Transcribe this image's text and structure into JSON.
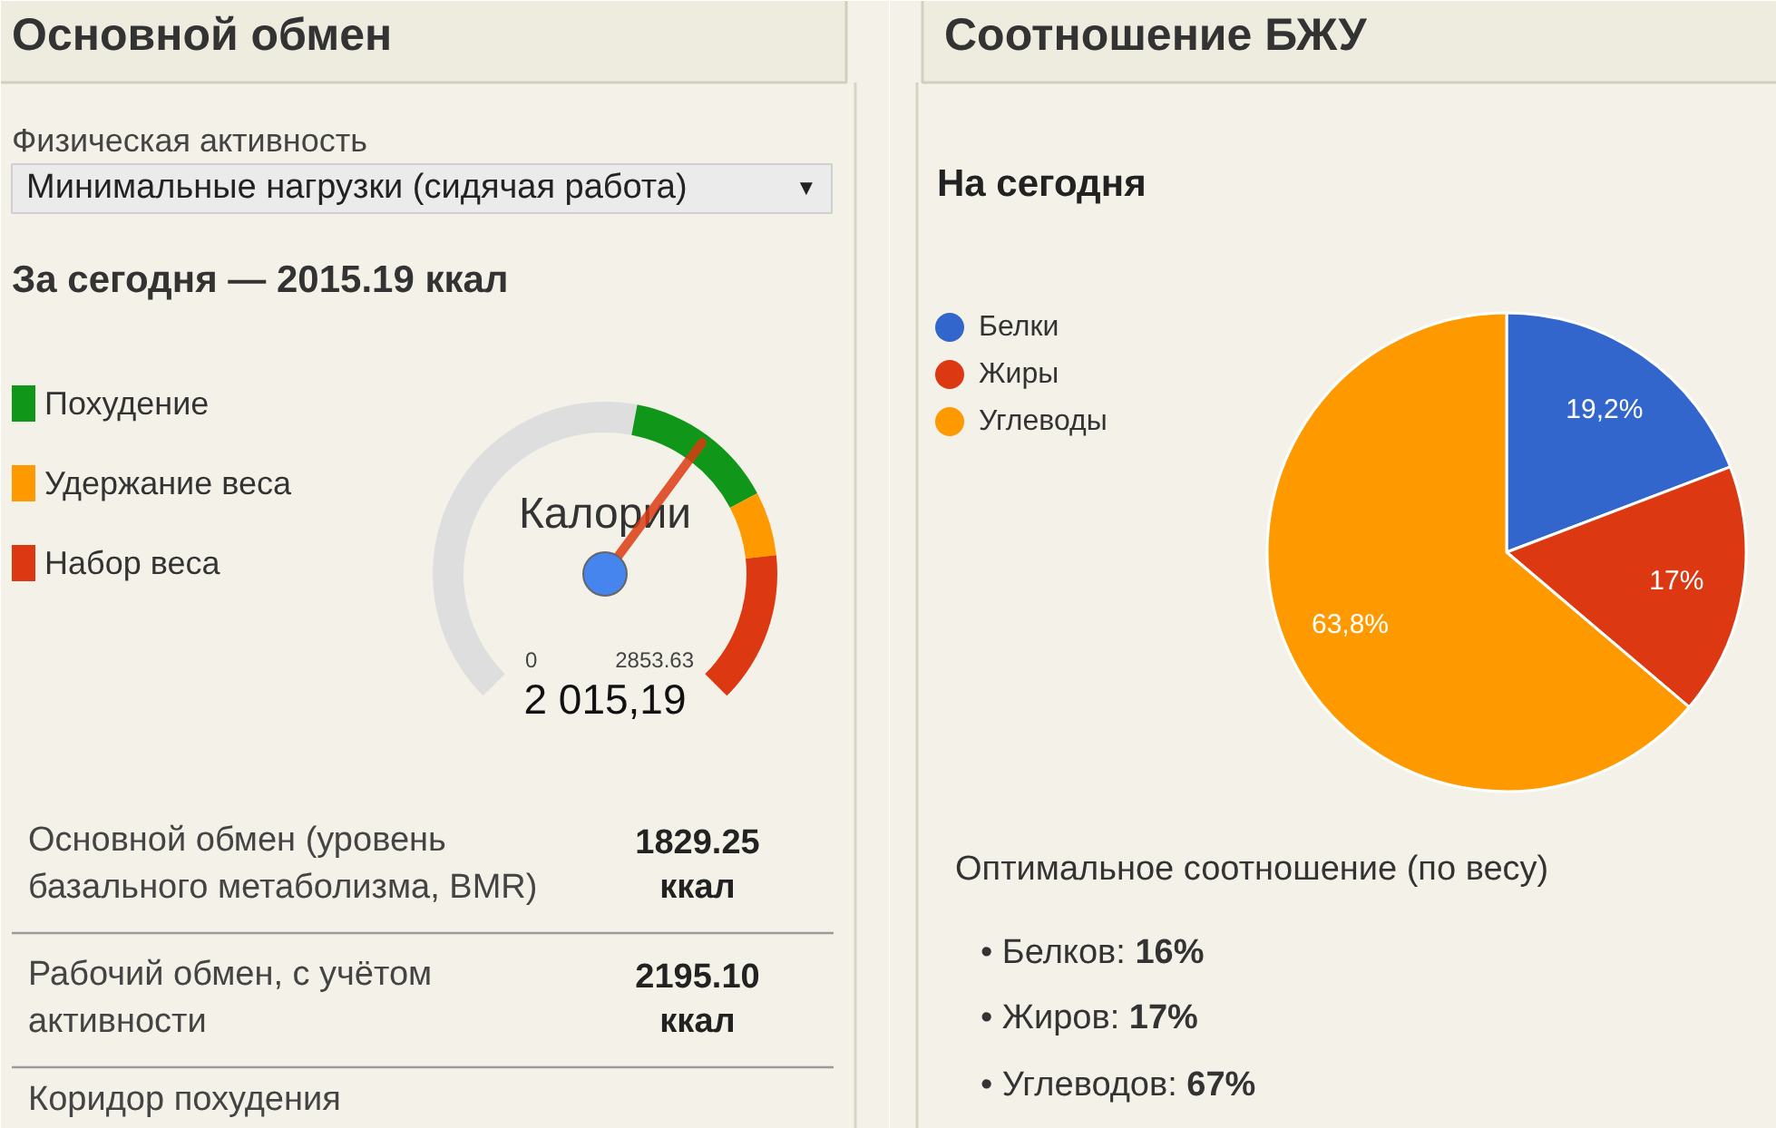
{
  "chart_data": [
    {
      "type": "donut",
      "title": "Основной обмен",
      "categories": [
        null,
        "Похудение",
        "Удержание веса",
        "Набор веса"
      ],
      "values": [
        54,
        19,
        8,
        19
      ],
      "colors": [
        "#dedede",
        "#109618",
        "#ff9900",
        "#dc3912"
      ],
      "needle": "Похудение",
      "legend": "left",
      "annotations": [
        "Физическая активность",
        "Минимальные нагрузки (сидячая работа)",
        "▼",
        "За сегодня — 2015.19 ккал",
        "Калории",
        "0",
        "2853.63",
        "2 015,19",
        "Основной обмен (уровень базального метаболизма, BMR)",
        "1829.25 ккал",
        "Рабочий обмен, с учётом активности",
        "2195.10 ккал",
        "Коридор похудения"
      ]
    },
    {
      "type": "pie",
      "title": "Соотношение БЖУ",
      "subtitle": "На сегодня",
      "categories": [
        "Белки",
        "Жиры",
        "Углеводы"
      ],
      "values": [
        19.2,
        17,
        63.8
      ],
      "colors": [
        "#3366cc",
        "#dc3912",
        "#ff9900"
      ],
      "value_labels": [
        "19,2%",
        "17%",
        "63,8%"
      ],
      "legend": "left",
      "annotations": [
        "Оптимальное соотношение (по весу)",
        "• Белков: 16%",
        "• Жиров: 17%",
        "• Углеводов: 67%"
      ]
    }
  ]
}
